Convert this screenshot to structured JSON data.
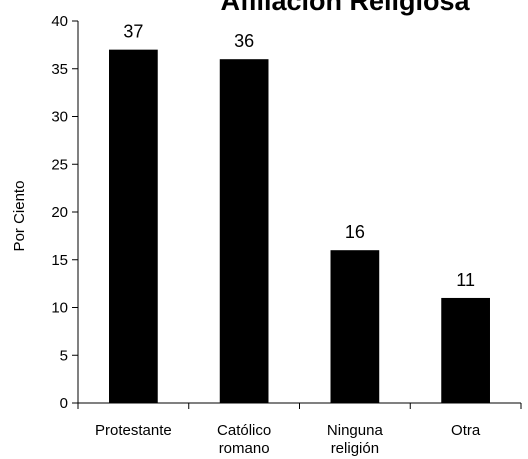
{
  "chart_data": {
    "type": "bar",
    "title": "Afiliación Religiosa",
    "xlabel": "",
    "ylabel": "Por Ciento",
    "categories": [
      [
        "Protestante"
      ],
      [
        "Católico",
        "romano"
      ],
      [
        "Ninguna",
        "religión"
      ],
      [
        "Otra"
      ]
    ],
    "values": [
      37,
      36,
      16,
      11
    ],
    "data_labels": [
      "37",
      "36",
      "16",
      "11"
    ],
    "ylim": [
      0,
      40
    ],
    "yticks": [
      0,
      5,
      10,
      15,
      20,
      25,
      30,
      35,
      40
    ],
    "grid": false,
    "legend": "none",
    "bar_color": "#000000"
  }
}
